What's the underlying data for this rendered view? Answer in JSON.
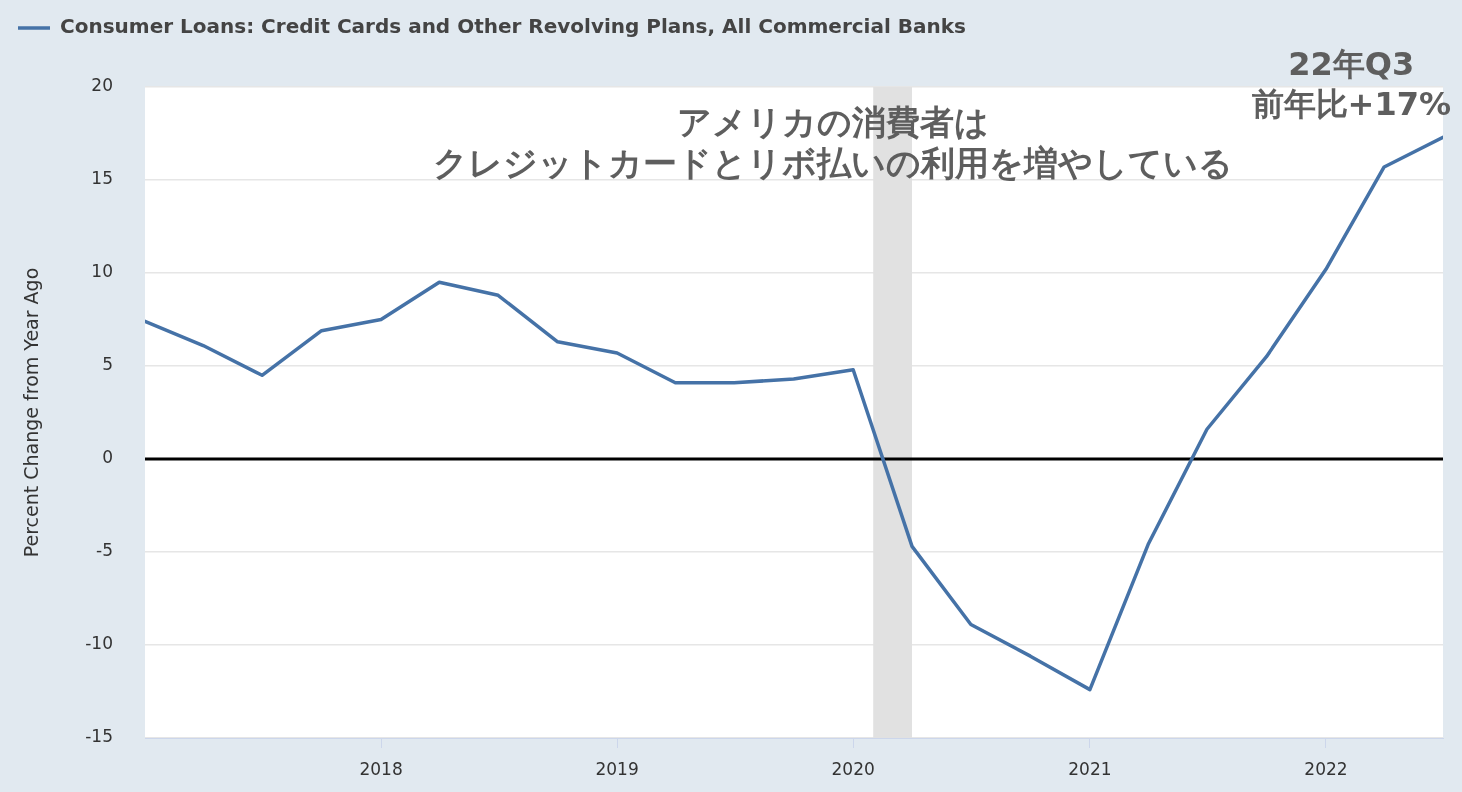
{
  "chart_data": {
    "type": "line",
    "ylabel": "Percent Change from Year Ago",
    "x": [
      "2017-01",
      "2017-04",
      "2017-07",
      "2017-10",
      "2018-01",
      "2018-04",
      "2018-07",
      "2018-10",
      "2019-01",
      "2019-04",
      "2019-07",
      "2019-10",
      "2020-01",
      "2020-04",
      "2020-07",
      "2020-10",
      "2021-01",
      "2021-04",
      "2021-07",
      "2021-10",
      "2022-01",
      "2022-04",
      "2022-07"
    ],
    "series": [
      {
        "name": "Consumer Loans: Credit Cards and Other Revolving Plans, All Commercial Banks",
        "color": "#4572a7",
        "values": [
          7.4,
          6.1,
          4.5,
          6.9,
          7.5,
          9.5,
          8.8,
          6.3,
          5.7,
          4.1,
          4.1,
          4.3,
          4.8,
          -4.7,
          -8.9,
          -10.6,
          -12.4,
          -4.6,
          1.6,
          5.5,
          10.2,
          15.7,
          17.3
        ]
      }
    ],
    "xlim": [
      "2017-01",
      "2022-07"
    ],
    "xticks": [
      "2018",
      "2019",
      "2020",
      "2021",
      "2022"
    ],
    "ylim": [
      -15,
      20
    ],
    "yticks": [
      -15,
      -10,
      -5,
      0,
      5,
      10,
      15,
      20
    ],
    "grid": "y",
    "legend": "top left",
    "bands": [
      {
        "axis": "x",
        "from": "2020-02",
        "to": "2020-04",
        "color": "#e1e1e1"
      }
    ],
    "ref_lines": [
      {
        "axis": "y",
        "value": 0,
        "color": "#000000"
      }
    ],
    "annotations": [
      "アメリカの消費者は",
      "クレジットカードとリボ払いの利用を増やしている",
      {
        "text": "22年Q3\n前年比+17%",
        "x": "2022-07",
        "y": 17.3
      }
    ]
  }
}
